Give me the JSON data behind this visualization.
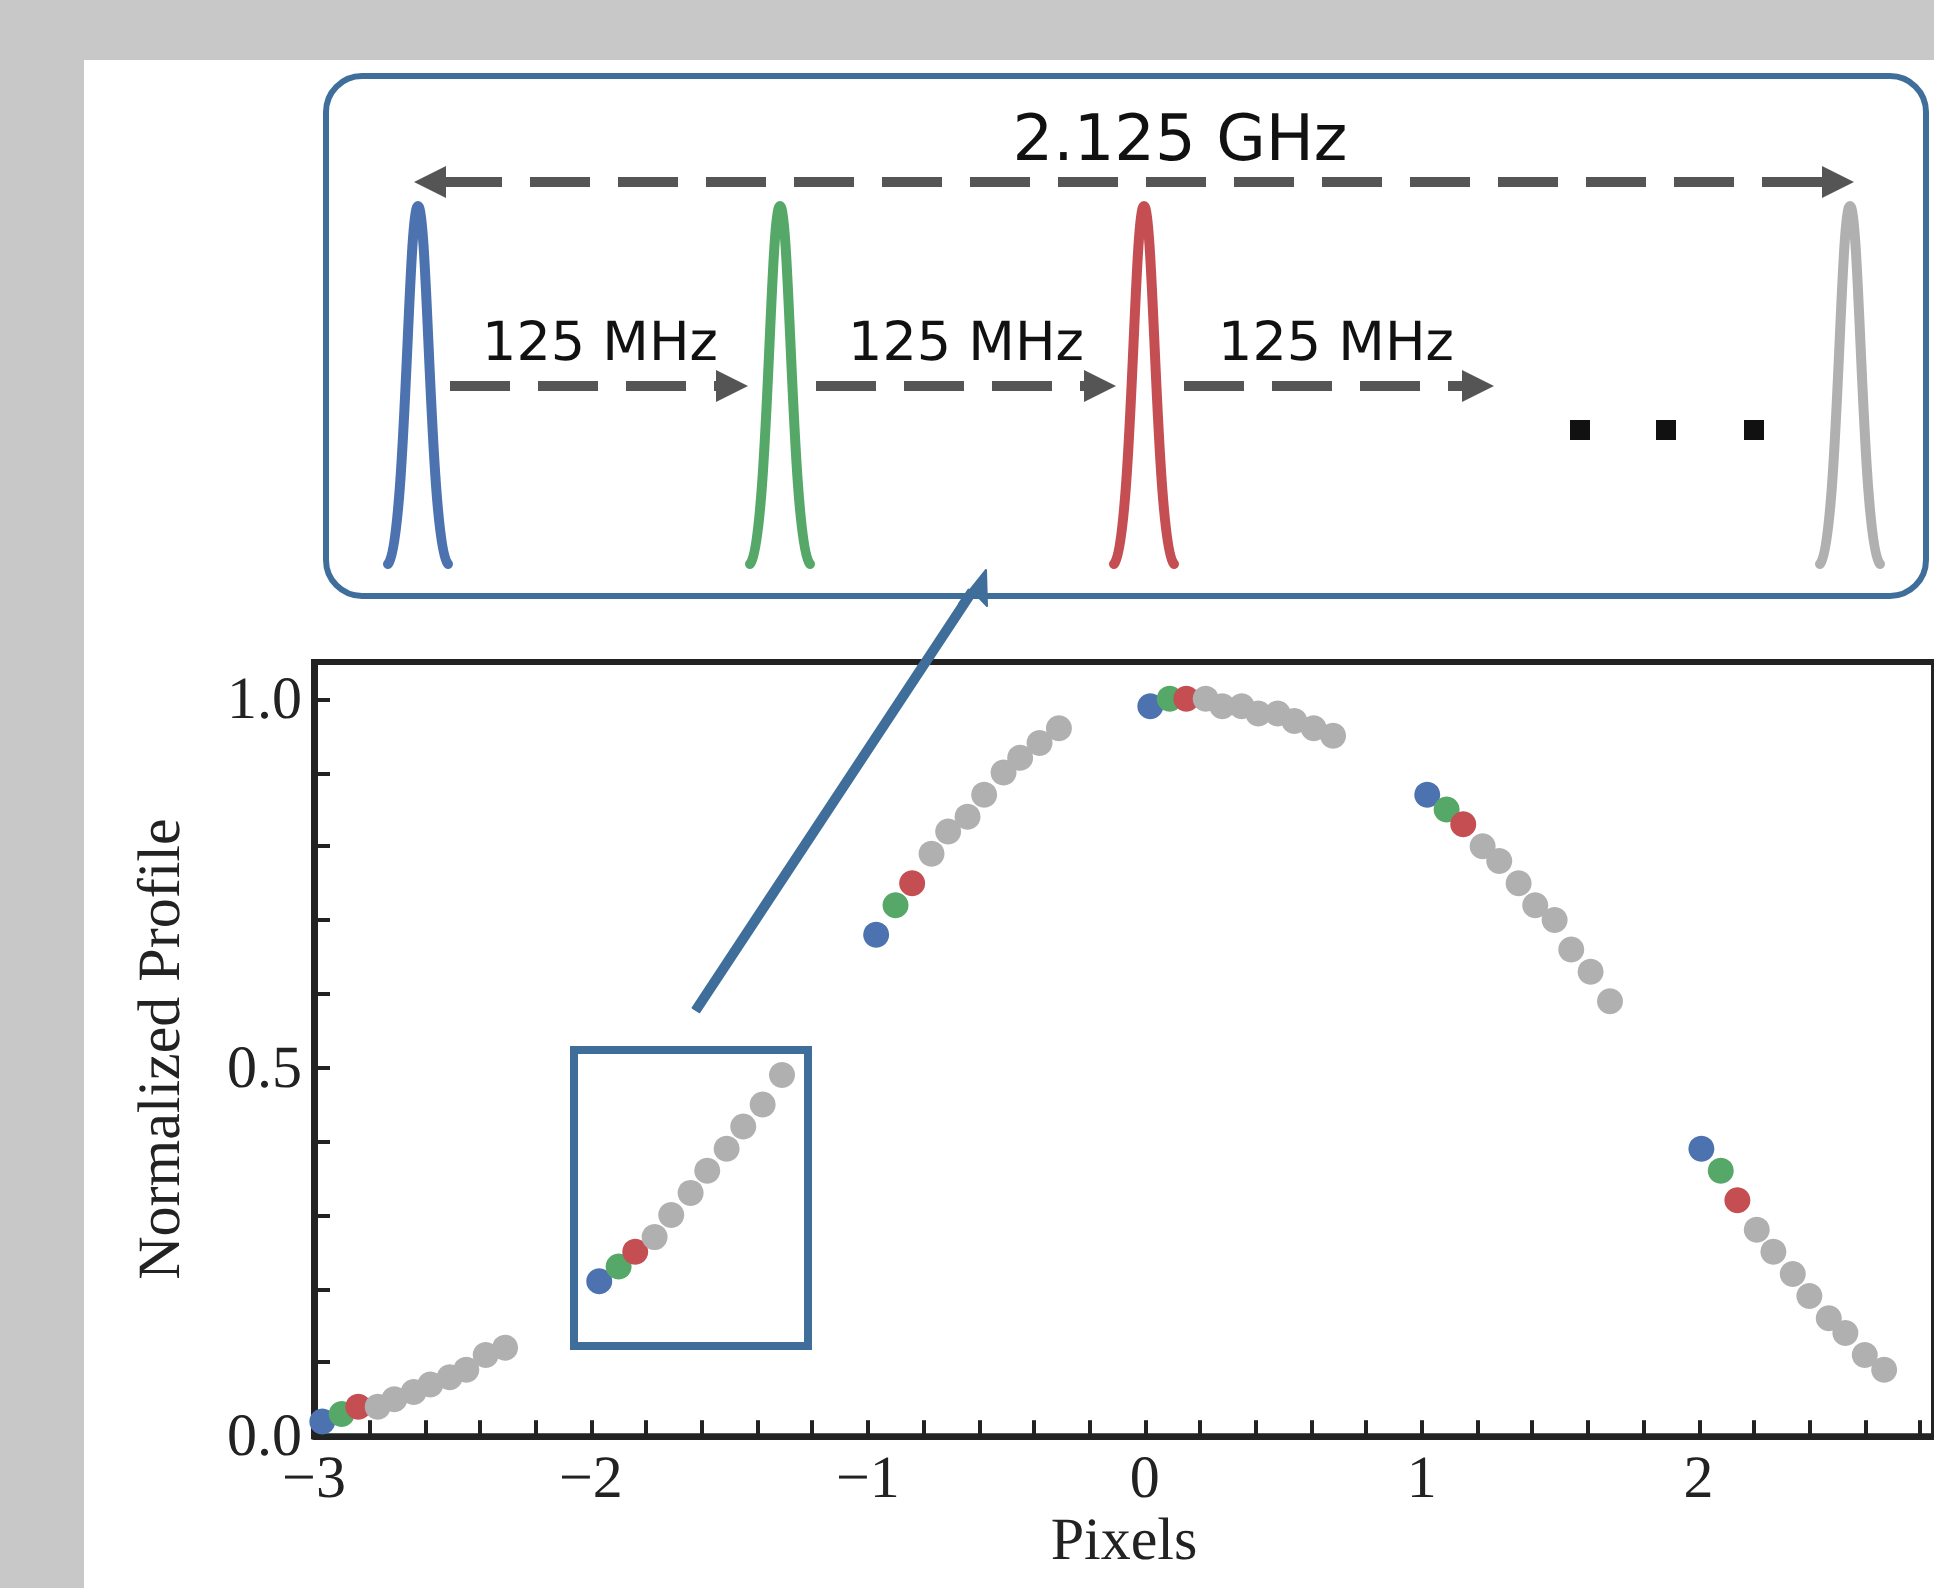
{
  "chart_data": {
    "type": "scatter",
    "xlabel": "Pixels",
    "ylabel": "Normalized Profile",
    "xlim": [
      -3,
      2.85
    ],
    "ylim": [
      0,
      1.05
    ],
    "xticks": [
      {
        "value": -3,
        "label": "−3"
      },
      {
        "value": -2.8,
        "label": null
      },
      {
        "value": -2.6,
        "label": null
      },
      {
        "value": -2.4,
        "label": null
      },
      {
        "value": -2.2,
        "label": null
      },
      {
        "value": -2,
        "label": "−2"
      },
      {
        "value": -1.8,
        "label": null
      },
      {
        "value": -1.6,
        "label": null
      },
      {
        "value": -1.4,
        "label": null
      },
      {
        "value": -1.2,
        "label": null
      },
      {
        "value": -1,
        "label": "−1"
      },
      {
        "value": -0.8,
        "label": null
      },
      {
        "value": -0.6,
        "label": null
      },
      {
        "value": -0.4,
        "label": null
      },
      {
        "value": -0.2,
        "label": null
      },
      0,
      {
        "value": 0.2,
        "label": null
      },
      {
        "value": 0.4,
        "label": null
      },
      {
        "value": 0.6,
        "label": null
      },
      {
        "value": 0.8,
        "label": null
      },
      1,
      {
        "value": 1.2,
        "label": null
      },
      {
        "value": 1.4,
        "label": null
      },
      {
        "value": 1.6,
        "label": null
      },
      {
        "value": 1.8,
        "label": null
      },
      2,
      {
        "value": 2.2,
        "label": null
      },
      {
        "value": 2.4,
        "label": null
      },
      {
        "value": 2.6,
        "label": null
      },
      {
        "value": 2.8,
        "label": null
      }
    ],
    "yticks": [
      {
        "value": 0,
        "label": "0.0"
      },
      {
        "value": 0.1,
        "label": null
      },
      {
        "value": 0.2,
        "label": null
      },
      {
        "value": 0.3,
        "label": null
      },
      {
        "value": 0.4,
        "label": null
      },
      {
        "value": 0.5,
        "label": "0.5"
      },
      {
        "value": 0.6,
        "label": null
      },
      {
        "value": 0.7,
        "label": null
      },
      {
        "value": 0.8,
        "label": null
      },
      {
        "value": 0.9,
        "label": null
      },
      {
        "value": 1,
        "label": "1.0"
      }
    ],
    "grid": false,
    "marker": "circle",
    "annotations": [
      "2.125 GHz",
      "125 MHz",
      "125 MHz",
      "125 MHz"
    ],
    "series": [
      {
        "color": "#4c72b0",
        "x": [
          -2.97,
          -1.97,
          -0.97,
          0.02,
          1.02,
          2.01
        ],
        "values": [
          0.02,
          0.21,
          0.68,
          0.99,
          0.87,
          0.39
        ]
      },
      {
        "color": "#55a868",
        "x": [
          -2.9,
          -1.9,
          -0.9,
          0.09,
          1.09,
          2.08
        ],
        "values": [
          0.03,
          0.23,
          0.72,
          1.0,
          0.85,
          0.36
        ]
      },
      {
        "color": "#c44e52",
        "x": [
          -2.84,
          -1.84,
          -0.84,
          0.15,
          1.15,
          2.14
        ],
        "values": [
          0.04,
          0.25,
          0.75,
          1.0,
          0.83,
          0.32
        ]
      },
      {
        "color": "#b0b0b0",
        "x": [
          -2.77,
          -2.71,
          -2.64,
          -2.58,
          -2.51,
          -2.45,
          -2.38,
          -2.31,
          -1.77,
          -1.71,
          -1.64,
          -1.58,
          -1.51,
          -1.45,
          -1.38,
          -1.31,
          -0.77,
          -0.71,
          -0.64,
          -0.58,
          -0.51,
          -0.45,
          -0.38,
          -0.31,
          0.22,
          0.28,
          0.35,
          0.41,
          0.48,
          0.54,
          0.61,
          0.68,
          1.22,
          1.28,
          1.35,
          1.41,
          1.48,
          1.54,
          1.61,
          1.68,
          2.21,
          2.27,
          2.34,
          2.4,
          2.47,
          2.53,
          2.6,
          2.67
        ],
        "values": [
          0.04,
          0.05,
          0.06,
          0.07,
          0.08,
          0.09,
          0.11,
          0.12,
          0.27,
          0.3,
          0.33,
          0.36,
          0.39,
          0.42,
          0.45,
          0.49,
          0.79,
          0.82,
          0.84,
          0.87,
          0.9,
          0.92,
          0.94,
          0.96,
          1.0,
          0.99,
          0.99,
          0.98,
          0.98,
          0.97,
          0.96,
          0.95,
          0.8,
          0.78,
          0.75,
          0.72,
          0.7,
          0.66,
          0.63,
          0.59,
          0.28,
          0.25,
          0.22,
          0.19,
          0.16,
          0.14,
          0.11,
          0.09
        ]
      }
    ]
  }
}
